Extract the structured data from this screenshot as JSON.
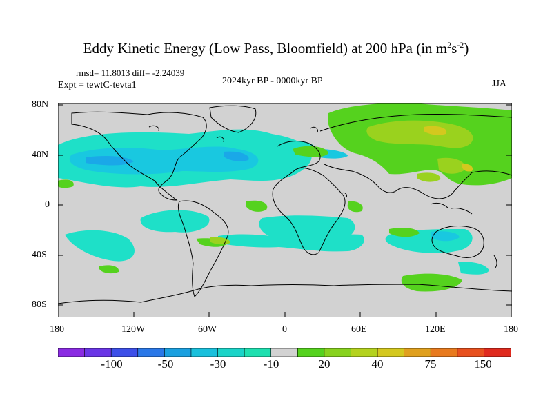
{
  "figure": {
    "title_main": "Eddy Kinetic Energy (Low Pass, Bloomfield) at 200 hPa (in m",
    "title_sup1": "2",
    "title_mid": "s",
    "title_sup2": "-2",
    "title_end": ")",
    "stats": "rmsd= 11.8013 diff= -2.24039",
    "period": "2024kyr BP - 0000kyr BP",
    "experiment": "Expt = tewtC-tevta1",
    "season": "JJA"
  },
  "axes": {
    "lat_ticks": [
      "80N",
      "40N",
      "0",
      "40S",
      "80S"
    ],
    "lon_ticks": [
      "180",
      "120W",
      "60W",
      "0",
      "60E",
      "120E",
      "180"
    ]
  },
  "colorbar": {
    "colors": [
      "#8a2be2",
      "#6a35e6",
      "#3d4fe8",
      "#2a78e8",
      "#1aa0e0",
      "#19c0dc",
      "#1ad4c8",
      "#1ee0b0",
      "#d2d2d2",
      "#55d21e",
      "#88d21e",
      "#b4d21e",
      "#d4c81e",
      "#e0a01e",
      "#e87a1e",
      "#e8501e",
      "#e02a1e"
    ],
    "labels": [
      "-100",
      "-50",
      "-30",
      "-10",
      "20",
      "40",
      "75",
      "150"
    ]
  },
  "colors": {
    "land_missing": "#d2d2d2",
    "neg_light": "#1ee0c8",
    "neg_mid": "#19c8e0",
    "neg_strong": "#1aa8e8",
    "pos_light": "#55d21e",
    "pos_mid": "#9ad21e",
    "pos_strong": "#d4c81e"
  }
}
